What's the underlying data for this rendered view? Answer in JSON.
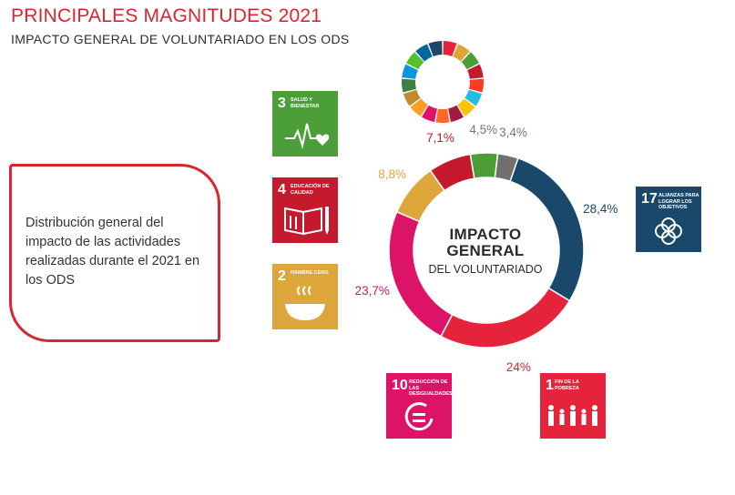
{
  "header": {
    "title": "PRINCIPALES MAGNITUDES 2021",
    "subtitle": "IMPACTO GENERAL DE VOLUNTARIADO EN LOS ODS"
  },
  "callout": {
    "text": "Distribución general del impacto de las actividades realizadas durante el 2021 en los ODS"
  },
  "center": {
    "line1": "IMPACTO",
    "line2": "GENERAL",
    "line3": "DEL VOLUNTARIADO"
  },
  "sdg_icons": [
    {
      "number": "3",
      "label": "SALUD Y BIENESTAR",
      "color": "#4c9f38",
      "icon": "heartbeat-icon"
    },
    {
      "number": "4",
      "label": "EDUCACIÓN DE CALIDAD",
      "color": "#c5192d",
      "icon": "book-icon"
    },
    {
      "number": "2",
      "label": "HAMBRE CERO",
      "color": "#dda63a",
      "icon": "bowl-icon"
    },
    {
      "number": "17",
      "label": "ALIANZAS PARA LOGRAR LOS OBJETIVOS",
      "color": "#19486a",
      "icon": "flower-icon"
    },
    {
      "number": "10",
      "label": "REDUCCIÓN DE LAS DESIGUALDADES",
      "color": "#dd1367",
      "icon": "equal-circle-icon"
    },
    {
      "number": "1",
      "label": "FIN DE LA POBREZA",
      "color": "#e5243b",
      "icon": "family-icon"
    }
  ],
  "chart_data": {
    "type": "pie",
    "donut": true,
    "slices": [
      {
        "label": "28,4%",
        "value": 28.4,
        "color": "#19486a"
      },
      {
        "label": "24%",
        "value": 24.0,
        "color": "#e5243b"
      },
      {
        "label": "23,7%",
        "value": 23.7,
        "color": "#dd1367"
      },
      {
        "label": "8,8%",
        "value": 8.8,
        "color": "#dda63a"
      },
      {
        "label": "7,1%",
        "value": 7.1,
        "color": "#c5192d"
      },
      {
        "label": "4,5%",
        "value": 4.5,
        "color": "#4c9f38"
      },
      {
        "label": "3,4%",
        "value": 3.4,
        "color": "#707070"
      }
    ]
  },
  "sdg_wheel_colors": [
    "#e5243b",
    "#dda63a",
    "#4c9f38",
    "#c5192d",
    "#ff3a21",
    "#26bde2",
    "#fcc30b",
    "#a21942",
    "#fd6925",
    "#dd1367",
    "#fd9d24",
    "#bf8b2e",
    "#3f7e44",
    "#0a97d9",
    "#56c02b",
    "#00689d",
    "#19486a"
  ]
}
